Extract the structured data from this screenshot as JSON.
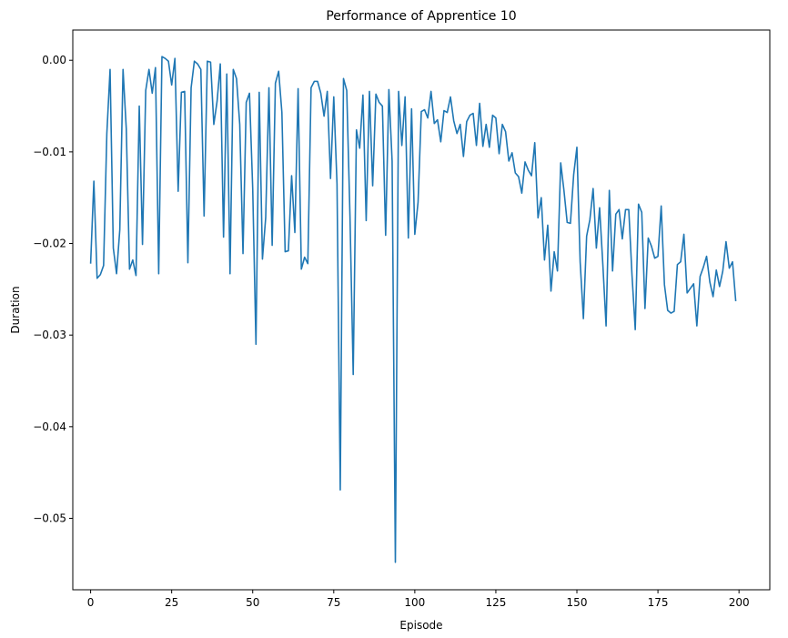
{
  "chart_data": {
    "type": "line",
    "title": "Performance of Apprentice 10",
    "xlabel": "Episode",
    "ylabel": "Duration",
    "xlim": [
      -5.5,
      209.5
    ],
    "ylim": [
      -0.0578,
      0.0033
    ],
    "x_ticks": [
      0,
      25,
      50,
      75,
      100,
      125,
      150,
      175,
      200
    ],
    "y_ticks": [
      0.0,
      -0.01,
      -0.02,
      -0.03,
      -0.04,
      -0.05
    ],
    "y_tick_labels": [
      "0.00",
      "−0.01",
      "−0.02",
      "−0.03",
      "−0.04",
      "−0.05"
    ],
    "grid": false,
    "legend": "none",
    "colors": {
      "line": "#1f77b4"
    },
    "series": [
      {
        "x_start": 0,
        "x_step": 1,
        "values": [
          -0.0222,
          -0.0132,
          -0.0238,
          -0.0234,
          -0.0224,
          -0.008,
          -0.001,
          -0.0205,
          -0.0233,
          -0.0185,
          -0.001,
          -0.0075,
          -0.0228,
          -0.0218,
          -0.0235,
          -0.005,
          -0.0201,
          -0.0033,
          -0.001,
          -0.0036,
          -0.0008,
          -0.0233,
          0.0004,
          0.0002,
          -0.0001,
          -0.0027,
          0.0002,
          -0.0143,
          -0.0035,
          -0.0034,
          -0.0221,
          -0.003,
          -0.0001,
          -0.0004,
          -0.001,
          -0.017,
          -0.0001,
          -0.0002,
          -0.007,
          -0.0045,
          -0.0004,
          -0.0193,
          -0.0015,
          -0.0233,
          -0.001,
          -0.002,
          -0.007,
          -0.0211,
          -0.0046,
          -0.0036,
          -0.014,
          -0.031,
          -0.0035,
          -0.0217,
          -0.0172,
          -0.003,
          -0.0202,
          -0.0025,
          -0.0012,
          -0.0057,
          -0.0209,
          -0.0208,
          -0.0126,
          -0.0188,
          -0.0031,
          -0.0228,
          -0.0215,
          -0.0222,
          -0.003,
          -0.0023,
          -0.0023,
          -0.0036,
          -0.0061,
          -0.0034,
          -0.0129,
          -0.004,
          -0.0135,
          -0.0469,
          -0.002,
          -0.0033,
          -0.017,
          -0.0343,
          -0.0076,
          -0.0096,
          -0.0038,
          -0.0175,
          -0.0034,
          -0.0137,
          -0.0037,
          -0.0046,
          -0.005,
          -0.0191,
          -0.0032,
          -0.011,
          -0.0548,
          -0.0034,
          -0.0093,
          -0.004,
          -0.0194,
          -0.0053,
          -0.019,
          -0.0155,
          -0.0056,
          -0.0054,
          -0.0063,
          -0.0034,
          -0.0069,
          -0.0065,
          -0.0089,
          -0.0055,
          -0.0057,
          -0.004,
          -0.0066,
          -0.008,
          -0.007,
          -0.0105,
          -0.0067,
          -0.006,
          -0.0058,
          -0.0093,
          -0.0047,
          -0.0094,
          -0.007,
          -0.0095,
          -0.006,
          -0.0063,
          -0.0102,
          -0.007,
          -0.0078,
          -0.011,
          -0.0101,
          -0.0123,
          -0.0127,
          -0.0145,
          -0.0111,
          -0.012,
          -0.0126,
          -0.009,
          -0.0172,
          -0.015,
          -0.0218,
          -0.018,
          -0.0252,
          -0.0209,
          -0.023,
          -0.0112,
          -0.0142,
          -0.0177,
          -0.0178,
          -0.0125,
          -0.0095,
          -0.022,
          -0.0282,
          -0.0192,
          -0.0174,
          -0.014,
          -0.0205,
          -0.0161,
          -0.0223,
          -0.029,
          -0.0142,
          -0.023,
          -0.0168,
          -0.0163,
          -0.0195,
          -0.0163,
          -0.0163,
          -0.0235,
          -0.0294,
          -0.0157,
          -0.0166,
          -0.0271,
          -0.0194,
          -0.0203,
          -0.0216,
          -0.0214,
          -0.0159,
          -0.0245,
          -0.0273,
          -0.0276,
          -0.0274,
          -0.0223,
          -0.022,
          -0.019,
          -0.0254,
          -0.0249,
          -0.0244,
          -0.029,
          -0.0236,
          -0.0226,
          -0.0214,
          -0.0242,
          -0.0258,
          -0.0229,
          -0.0247,
          -0.023,
          -0.0198,
          -0.0227,
          -0.022,
          -0.0263
        ]
      }
    ]
  }
}
